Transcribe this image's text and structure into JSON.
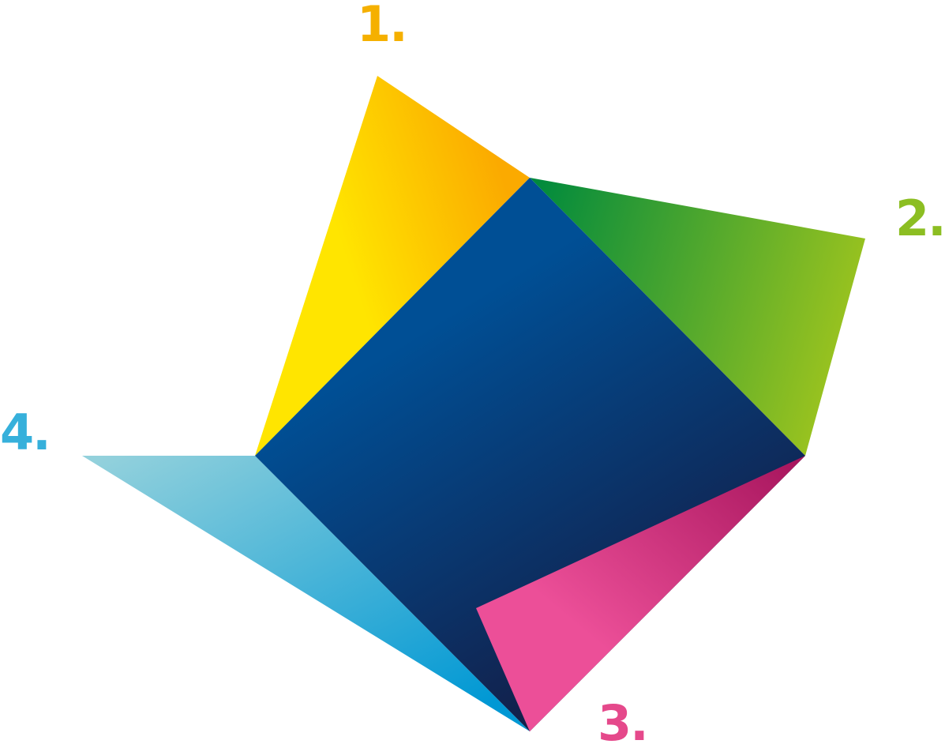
{
  "labels": {
    "one": "1.",
    "two": "2.",
    "three": "3.",
    "four": "4."
  },
  "colors": {
    "square_light": "#004f95",
    "square_dark": "#141c44",
    "yellow_light": "#ffe500",
    "yellow_dark": "#fbaa00",
    "green_dark": "#008a3d",
    "green_light": "#9ac31f",
    "pink_light": "#ec4f98",
    "pink_dark": "#a8165e",
    "cyan_light": "#93d1dc",
    "cyan_dark": "#0098d4",
    "label_one": "#f5b000",
    "label_two": "#8cbe22",
    "label_three": "#e5498b",
    "label_four": "#36b0db"
  }
}
